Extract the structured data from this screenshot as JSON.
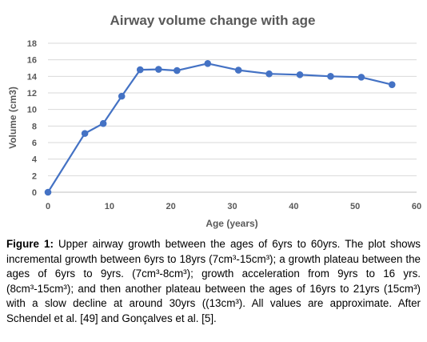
{
  "chart_data": {
    "type": "line",
    "title": "Airway volume change with age",
    "xlabel": "Age (years)",
    "ylabel": "Volume (cm3)",
    "xlim": [
      0,
      60
    ],
    "ylim": [
      0,
      18
    ],
    "x_ticks": [
      0,
      10,
      20,
      30,
      40,
      50,
      60
    ],
    "y_ticks": [
      0,
      2,
      4,
      6,
      8,
      10,
      12,
      14,
      16,
      18
    ],
    "grid": "horizontal",
    "legend": "none",
    "series": [
      {
        "x": [
          0,
          6,
          9,
          12,
          15,
          18,
          21,
          26,
          31,
          36,
          41,
          46,
          51,
          56
        ],
        "y": [
          0,
          7.1,
          8.3,
          11.6,
          14.8,
          14.85,
          14.7,
          15.55,
          14.75,
          14.3,
          14.2,
          14.0,
          13.9,
          13.0
        ]
      }
    ],
    "colors": {
      "line": "#4472C4",
      "grid": "#d9d9d9",
      "text": "#595959"
    }
  },
  "caption": {
    "lead": "Figure 1:",
    "text": " Upper airway growth between the ages of 6yrs to 60yrs.  The plot shows incremental growth between 6yrs to 18yrs (7cm³-15cm³); a growth plateau between the ages of 6yrs to 9yrs. (7cm³-8cm³); growth acceleration from 9yrs to 16 yrs. (8cm³-15cm³); and then another plateau between the ages of 16yrs to 21yrs (15cm³) with a slow decline at around 30yrs ((13cm³). All values are approximate. After Schendel et al. [49] and Gonçalves et al. [5]."
  }
}
